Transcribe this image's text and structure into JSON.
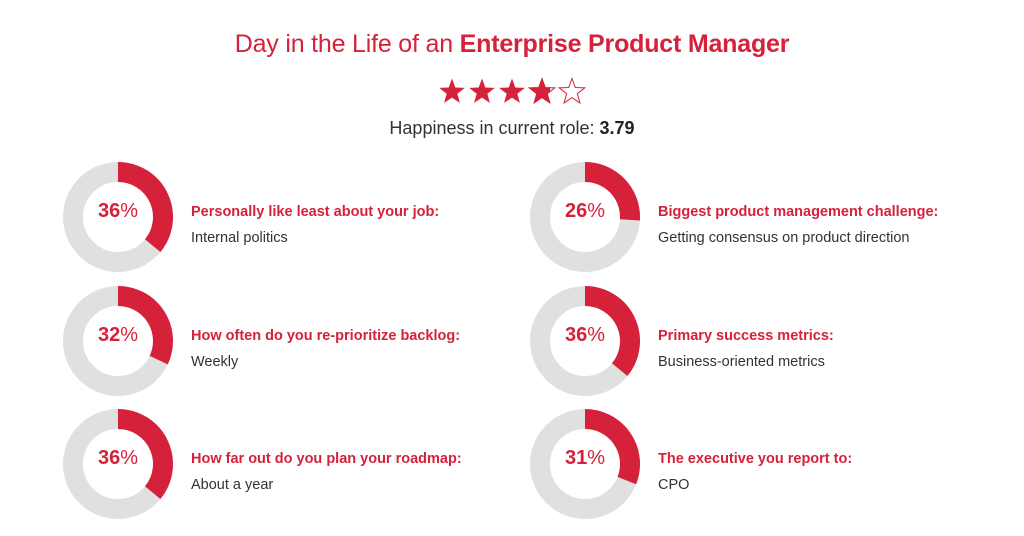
{
  "header": {
    "title_prefix": "Day in the Life of an ",
    "title_bold": "Enterprise Product Manager",
    "happiness_label": "Happiness in current role: ",
    "happiness_value": "3.79",
    "rating": 3.79,
    "rating_max": 5
  },
  "colors": {
    "accent": "#d6213a",
    "ring_bg": "#e0e0e0",
    "text": "#333333"
  },
  "chart_data": {
    "type": "pie",
    "charts": [
      {
        "percent": 36,
        "value_label": "36",
        "question": "Personally like least about your job:",
        "answer": "Internal politics"
      },
      {
        "percent": 26,
        "value_label": "26",
        "question": "Biggest product management challenge:",
        "answer": "Getting consensus on product direction"
      },
      {
        "percent": 32,
        "value_label": "32",
        "question": "How often do you re-prioritize backlog:",
        "answer": "Weekly"
      },
      {
        "percent": 36,
        "value_label": "36",
        "question": "Primary success metrics:",
        "answer": "Business-oriented metrics"
      },
      {
        "percent": 36,
        "value_label": "36",
        "question": "How far out do you plan your roadmap:",
        "answer": "About a year"
      },
      {
        "percent": 31,
        "value_label": "31",
        "question": "The executive you report to:",
        "answer": "CPO"
      }
    ],
    "unit": "%"
  }
}
